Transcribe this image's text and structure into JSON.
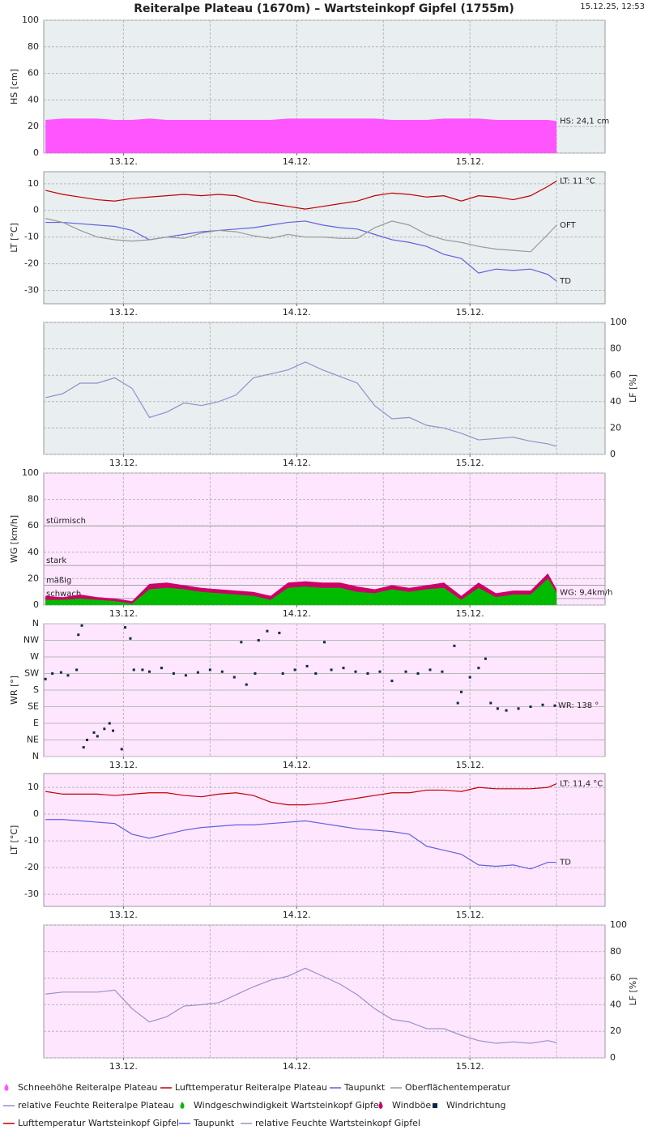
{
  "header": {
    "title": "Reiteralpe Plateau (1670m) – Wartsteinkopf Gipfel (1755m)",
    "timestamp": "15.12.25, 12:53"
  },
  "chart_data": [
    {
      "type": "area",
      "ylabel": "HS [cm]",
      "axis_side": "left",
      "axis_color": "#e040e0",
      "background": "#e9eef0",
      "xlim": [
        12.54,
        15.78
      ],
      "xticks": [
        {
          "value": 13,
          "label": "13.12."
        },
        {
          "value": 14,
          "label": "14.12."
        },
        {
          "value": 15,
          "label": "15.12."
        }
      ],
      "xgrid": [
        13,
        13.5,
        14,
        14.5,
        15,
        15.5
      ],
      "ylim": [
        0,
        100
      ],
      "yticks": [
        0,
        20,
        40,
        60,
        80,
        100
      ],
      "x": [
        12.55,
        12.65,
        12.75,
        12.85,
        12.95,
        13.05,
        13.15,
        13.25,
        13.35,
        13.45,
        13.55,
        13.65,
        13.75,
        13.85,
        13.95,
        14.05,
        14.15,
        14.25,
        14.35,
        14.45,
        14.55,
        14.65,
        14.75,
        14.85,
        14.95,
        15.05,
        15.15,
        15.25,
        15.35,
        15.45,
        15.5
      ],
      "series": [
        {
          "name": "Schneehöhe Reiteralpe Plateau",
          "end_label": "HS: 24,1 cm",
          "color": "#ff55ff",
          "values": [
            25,
            26,
            26,
            26,
            25,
            25,
            26,
            25,
            25,
            25,
            25,
            25,
            25,
            25,
            26,
            26,
            26,
            26,
            26,
            26,
            25,
            25,
            25,
            26,
            26,
            26,
            25,
            25,
            25,
            25,
            24.1
          ]
        }
      ]
    },
    {
      "type": "line",
      "ylabel": "LT [°C]",
      "axis_side": "left",
      "axis_color": "#b00000",
      "background": "#e9eef0",
      "xlim": [
        12.54,
        15.78
      ],
      "xticks": [
        {
          "value": 13,
          "label": "13.12."
        },
        {
          "value": 14,
          "label": "14.12."
        },
        {
          "value": 15,
          "label": "15.12."
        }
      ],
      "xgrid": [
        13,
        13.5,
        14,
        14.5,
        15,
        15.5
      ],
      "ylim": [
        -35,
        14.5
      ],
      "yticks": [
        -30,
        -20,
        -10,
        0,
        10
      ],
      "x": [
        12.55,
        12.65,
        12.75,
        12.85,
        12.95,
        13.05,
        13.15,
        13.25,
        13.35,
        13.45,
        13.55,
        13.65,
        13.75,
        13.85,
        13.95,
        14.05,
        14.15,
        14.25,
        14.35,
        14.45,
        14.55,
        14.65,
        14.75,
        14.85,
        14.95,
        15.05,
        15.15,
        15.25,
        15.35,
        15.45,
        15.5
      ],
      "series": [
        {
          "name": "Lufttemperatur Reiteralpe Plateau",
          "end_label": "LT: 11 °C",
          "color": "#c00000",
          "values": [
            7.5,
            6,
            5,
            4,
            3.5,
            4.5,
            5,
            5.5,
            6,
            5.5,
            6,
            5.5,
            3.5,
            2.5,
            1.5,
            0.5,
            1.5,
            2.5,
            3.5,
            5.5,
            6.5,
            6,
            5,
            5.5,
            3.5,
            5.5,
            5,
            4,
            5.5,
            9,
            11
          ]
        },
        {
          "name": "Taupunkt",
          "end_label": "TD",
          "color": "#6060e0",
          "values": [
            -4.5,
            -4.5,
            -5,
            -5.5,
            -6,
            -7.5,
            -11,
            -10,
            -9,
            -8,
            -7.5,
            -7,
            -6.5,
            -5.5,
            -4.5,
            -4,
            -5.5,
            -6.5,
            -7,
            -9,
            -11,
            -12,
            -13.5,
            -16.5,
            -18,
            -23.5,
            -22,
            -22.5,
            -22,
            -24,
            -26.5
          ]
        },
        {
          "name": "Oberflächentemperatur",
          "end_label": "OFT",
          "color": "#999999",
          "values": [
            -3,
            -4.5,
            -7.5,
            -10,
            -11,
            -11.5,
            -11,
            -10,
            -10.5,
            -8.5,
            -7.5,
            -8,
            -9.5,
            -10.5,
            -9,
            -10,
            -10,
            -10.5,
            -10.5,
            -6.5,
            -4,
            -5.5,
            -9,
            -11,
            -12,
            -13.5,
            -14.5,
            -15,
            -15.5,
            -9,
            -5.5
          ]
        }
      ]
    },
    {
      "type": "line",
      "ylabel": "LF [%]",
      "axis_side": "right",
      "axis_color": "#a8a8d8",
      "background": "#e9eef0",
      "xlim": [
        12.54,
        15.78
      ],
      "xticks": [
        {
          "value": 13,
          "label": "13.12."
        },
        {
          "value": 14,
          "label": "14.12."
        },
        {
          "value": 15,
          "label": "15.12."
        }
      ],
      "xgrid": [
        13,
        13.5,
        14,
        14.5,
        15,
        15.5
      ],
      "ylim": [
        0,
        100
      ],
      "yticks": [
        0,
        20,
        40,
        60,
        80,
        100
      ],
      "x": [
        12.55,
        12.65,
        12.75,
        12.85,
        12.95,
        13.05,
        13.15,
        13.25,
        13.35,
        13.45,
        13.55,
        13.65,
        13.75,
        13.85,
        13.95,
        14.05,
        14.15,
        14.25,
        14.35,
        14.45,
        14.55,
        14.65,
        14.75,
        14.85,
        14.95,
        15.05,
        15.15,
        15.25,
        15.35,
        15.45,
        15.5
      ],
      "series": [
        {
          "name": "relative Feuchte Reiteralpe Plateau",
          "color": "#9090cc",
          "values": [
            43,
            46,
            54,
            54,
            58,
            50,
            28,
            32,
            39,
            37,
            40,
            45,
            58,
            61,
            64,
            70,
            64,
            59,
            54,
            37,
            27,
            28,
            22,
            20,
            16,
            11,
            12,
            13,
            10,
            8,
            6
          ]
        }
      ]
    },
    {
      "type": "area",
      "ylabel": "WG [km/h]",
      "axis_side": "left",
      "axis_color": "#00a000",
      "background": "#ffe6ff",
      "xlim": [
        12.54,
        15.78
      ],
      "xticks": [
        {
          "value": 13,
          "label": "13.12."
        },
        {
          "value": 14,
          "label": "14.12."
        },
        {
          "value": 15,
          "label": "15.12."
        }
      ],
      "xgrid": [
        13,
        13.5,
        14,
        14.5,
        15,
        15.5
      ],
      "ylim": [
        0,
        100
      ],
      "yticks": [
        0,
        20,
        40,
        60,
        80,
        100
      ],
      "thresholds": [
        {
          "value": 60,
          "label": "stürmisch"
        },
        {
          "value": 30,
          "label": "stark"
        },
        {
          "value": 15,
          "label": "mäßig"
        },
        {
          "value": 5,
          "label": "schwach"
        }
      ],
      "x": [
        12.55,
        12.65,
        12.75,
        12.85,
        12.95,
        13.05,
        13.15,
        13.25,
        13.35,
        13.45,
        13.55,
        13.65,
        13.75,
        13.85,
        13.95,
        14.05,
        14.15,
        14.25,
        14.35,
        14.45,
        14.55,
        14.65,
        14.75,
        14.85,
        14.95,
        15.05,
        15.15,
        15.25,
        15.35,
        15.45,
        15.5
      ],
      "series": [
        {
          "name": "Windgeschwindigkeit Wartsteinkopf Gipfel",
          "end_label": "WG: 9,4km/h",
          "color": "#00bb00",
          "values": [
            4,
            4,
            5,
            4,
            3,
            1,
            12,
            13,
            12,
            10,
            9,
            8,
            7,
            4,
            13,
            14,
            13,
            13,
            10,
            9,
            12,
            10,
            12,
            13,
            4,
            13,
            6,
            8,
            8,
            20,
            9.4
          ]
        },
        {
          "name": "Windböe",
          "color": "#cc0066",
          "values": [
            7,
            6,
            8,
            6,
            5,
            3,
            16,
            17,
            15,
            13,
            12,
            11,
            10,
            7,
            17,
            18,
            17,
            17,
            14,
            12,
            15,
            13,
            15,
            17,
            7,
            17,
            9,
            11,
            11,
            24,
            12
          ]
        }
      ]
    },
    {
      "type": "scatter",
      "ylabel": "WR [°]",
      "axis_side": "left",
      "axis_color": "#0a2a4a",
      "background": "#ffe6ff",
      "xlim": [
        12.54,
        15.78
      ],
      "xticks": [
        {
          "value": 13,
          "label": "13.12."
        },
        {
          "value": 14,
          "label": "14.12."
        },
        {
          "value": 15,
          "label": "15.12."
        }
      ],
      "xgrid": [
        13,
        13.5,
        14,
        14.5,
        15,
        15.5
      ],
      "ylim": [
        0,
        360
      ],
      "yticks": [
        {
          "value": 0,
          "label": "N"
        },
        {
          "value": 45,
          "label": "NE"
        },
        {
          "value": 90,
          "label": "E"
        },
        {
          "value": 135,
          "label": "SE"
        },
        {
          "value": 180,
          "label": "S"
        },
        {
          "value": 225,
          "label": "SW"
        },
        {
          "value": 270,
          "label": "W"
        },
        {
          "value": 315,
          "label": "NW"
        },
        {
          "value": 360,
          "label": "N"
        }
      ],
      "x": [
        12.55,
        12.59,
        12.64,
        12.68,
        12.73,
        12.74,
        12.76,
        12.77,
        12.79,
        12.83,
        12.85,
        12.89,
        12.92,
        12.94,
        12.99,
        13.01,
        13.04,
        13.06,
        13.11,
        13.15,
        13.22,
        13.29,
        13.36,
        13.43,
        13.5,
        13.57,
        13.64,
        13.68,
        13.71,
        13.76,
        13.78,
        13.83,
        13.9,
        13.92,
        13.99,
        14.06,
        14.11,
        14.16,
        14.2,
        14.27,
        14.34,
        14.41,
        14.48,
        14.55,
        14.63,
        14.7,
        14.77,
        14.84,
        14.91,
        14.93,
        14.95,
        15.0,
        15.05,
        15.09,
        15.12,
        15.16,
        15.21,
        15.28,
        15.35,
        15.42,
        15.49
      ],
      "series": [
        {
          "name": "Windrichtung",
          "end_label": "WR: 138 °",
          "color": "#0a2a4a",
          "values": [
            210,
            225,
            228,
            220,
            235,
            330,
            355,
            25,
            45,
            65,
            55,
            75,
            90,
            70,
            20,
            350,
            320,
            235,
            235,
            230,
            240,
            225,
            220,
            228,
            235,
            230,
            215,
            310,
            195,
            225,
            315,
            340,
            335,
            225,
            235,
            245,
            225,
            310,
            235,
            240,
            230,
            225,
            230,
            205,
            230,
            225,
            235,
            230,
            300,
            145,
            175,
            215,
            240,
            265,
            145,
            130,
            125,
            130,
            135,
            140,
            138
          ]
        }
      ]
    },
    {
      "type": "line",
      "ylabel": "LT [°C]",
      "axis_side": "left",
      "axis_color": "#b00000",
      "background": "#ffe6ff",
      "xlim": [
        12.54,
        15.78
      ],
      "xticks": [
        {
          "value": 13,
          "label": "13.12."
        },
        {
          "value": 14,
          "label": "14.12."
        },
        {
          "value": 15,
          "label": "15.12."
        }
      ],
      "xgrid": [
        13,
        13.5,
        14,
        14.5,
        15,
        15.5
      ],
      "ylim": [
        -34.5,
        15.2
      ],
      "yticks": [
        -30,
        -20,
        -10,
        0,
        10
      ],
      "x": [
        12.55,
        12.65,
        12.75,
        12.85,
        12.95,
        13.05,
        13.15,
        13.25,
        13.35,
        13.45,
        13.55,
        13.65,
        13.75,
        13.85,
        13.95,
        14.05,
        14.15,
        14.25,
        14.35,
        14.45,
        14.55,
        14.65,
        14.75,
        14.85,
        14.95,
        15.05,
        15.15,
        15.25,
        15.35,
        15.45,
        15.5
      ],
      "series": [
        {
          "name": "Lufttemperatur Wartsteinkopf Gipfel",
          "end_label": "LT: 11,4 °C",
          "color": "#c00000",
          "values": [
            8.5,
            7.5,
            7.5,
            7.5,
            7,
            7.5,
            8,
            8,
            7,
            6.5,
            7.5,
            8,
            7,
            4.5,
            3.5,
            3.5,
            4,
            5,
            6,
            7,
            8,
            8,
            9,
            9,
            8.5,
            10,
            9.5,
            9.5,
            9.5,
            10,
            11.4
          ]
        },
        {
          "name": "Taupunkt",
          "end_label": "TD",
          "color": "#6060e0",
          "values": [
            -2,
            -2,
            -2.5,
            -3,
            -3.5,
            -7.5,
            -9,
            -7.5,
            -6,
            -5,
            -4.5,
            -4,
            -4,
            -3.5,
            -3,
            -2.5,
            -3.5,
            -4.5,
            -5.5,
            -6,
            -6.5,
            -7.5,
            -12,
            -13.5,
            -15,
            -19,
            -19.5,
            -19,
            -20.5,
            -18,
            -18
          ]
        }
      ]
    },
    {
      "type": "line",
      "ylabel": "LF [%]",
      "axis_side": "right",
      "axis_color": "#a8a8d8",
      "background": "#ffe6ff",
      "xlim": [
        12.54,
        15.78
      ],
      "xticks": [
        {
          "value": 13,
          "label": "13.12."
        },
        {
          "value": 14,
          "label": "14.12."
        },
        {
          "value": 15,
          "label": "15.12."
        }
      ],
      "xgrid": [
        13,
        13.5,
        14,
        14.5,
        15,
        15.5
      ],
      "ylim": [
        0,
        100
      ],
      "yticks": [
        0,
        20,
        40,
        60,
        80,
        100
      ],
      "x": [
        12.55,
        12.65,
        12.75,
        12.85,
        12.95,
        13.05,
        13.15,
        13.25,
        13.35,
        13.45,
        13.55,
        13.65,
        13.75,
        13.85,
        13.95,
        14.05,
        14.15,
        14.25,
        14.35,
        14.45,
        14.55,
        14.65,
        14.75,
        14.85,
        14.95,
        15.05,
        15.15,
        15.25,
        15.35,
        15.45,
        15.5
      ],
      "series": [
        {
          "name": "relative Feuchte Wartsteinkopf Gipfel",
          "color": "#9a90c8",
          "values": [
            48,
            49.5,
            49.5,
            49.5,
            51,
            37,
            27,
            31,
            39,
            40,
            41.5,
            47.5,
            53.5,
            58.5,
            61.5,
            67.5,
            61.5,
            55.5,
            47.5,
            37,
            29,
            27,
            22,
            22,
            17,
            13,
            11,
            12,
            11,
            13,
            11.5
          ]
        }
      ]
    }
  ]
}
